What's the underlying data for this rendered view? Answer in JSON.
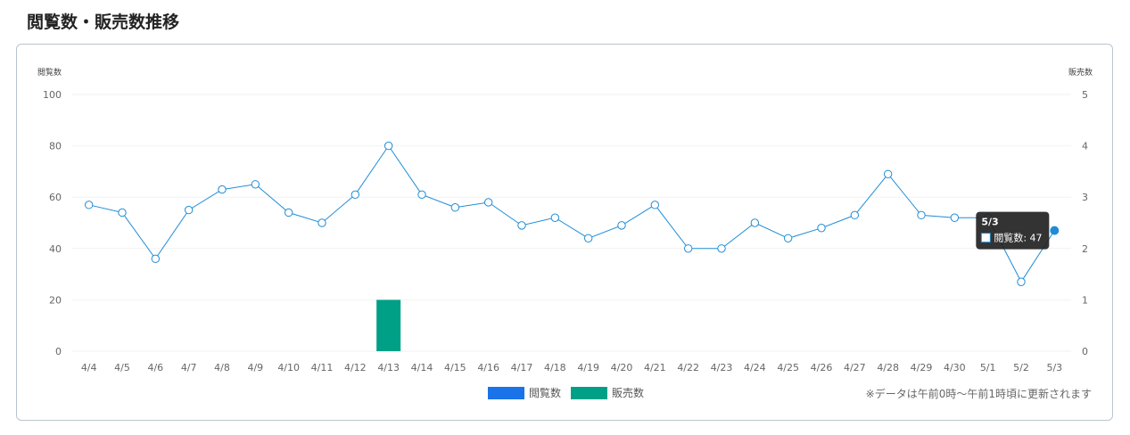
{
  "page": {
    "title": "閲覧数・販売数推移"
  },
  "colors": {
    "views_line": "#1f8dd6",
    "views_legend": "#1a73e8",
    "sales_bar": "#00a086",
    "grid": "#f2f2f2",
    "tooltip_bg": "#222222"
  },
  "chart_data": {
    "type": "line",
    "categories": [
      "4/4",
      "4/5",
      "4/6",
      "4/7",
      "4/8",
      "4/9",
      "4/10",
      "4/11",
      "4/12",
      "4/13",
      "4/14",
      "4/15",
      "4/16",
      "4/17",
      "4/18",
      "4/19",
      "4/20",
      "4/21",
      "4/22",
      "4/23",
      "4/24",
      "4/25",
      "4/26",
      "4/27",
      "4/28",
      "4/29",
      "4/30",
      "5/1",
      "5/2",
      "5/3"
    ],
    "series": [
      {
        "name": "閲覧数",
        "type": "line",
        "axis": "left",
        "values": [
          57,
          54,
          36,
          55,
          63,
          65,
          54,
          50,
          61,
          80,
          61,
          56,
          58,
          49,
          52,
          44,
          49,
          57,
          40,
          40,
          50,
          44,
          48,
          53,
          69,
          53,
          52,
          52,
          27,
          47
        ]
      },
      {
        "name": "販売数",
        "type": "bar",
        "axis": "right",
        "values": [
          0,
          0,
          0,
          0,
          0,
          0,
          0,
          0,
          0,
          1,
          0,
          0,
          0,
          0,
          0,
          0,
          0,
          0,
          0,
          0,
          0,
          0,
          0,
          0,
          0,
          0,
          0,
          0,
          0,
          0
        ]
      }
    ],
    "y_left": {
      "label": "閲覧数",
      "range": [
        0,
        100
      ],
      "ticks": [
        "0",
        "20",
        "40",
        "60",
        "80",
        "100"
      ]
    },
    "y_right": {
      "label": "販売数",
      "range": [
        0,
        5
      ],
      "ticks": [
        "0",
        "1",
        "2",
        "3",
        "4",
        "5"
      ]
    },
    "grid": true,
    "legend_position": "bottom",
    "tooltip": {
      "title": "5/3",
      "label": "閲覧数: 47",
      "index": 29
    }
  },
  "note": "※データは午前0時〜午前1時頃に更新されます"
}
